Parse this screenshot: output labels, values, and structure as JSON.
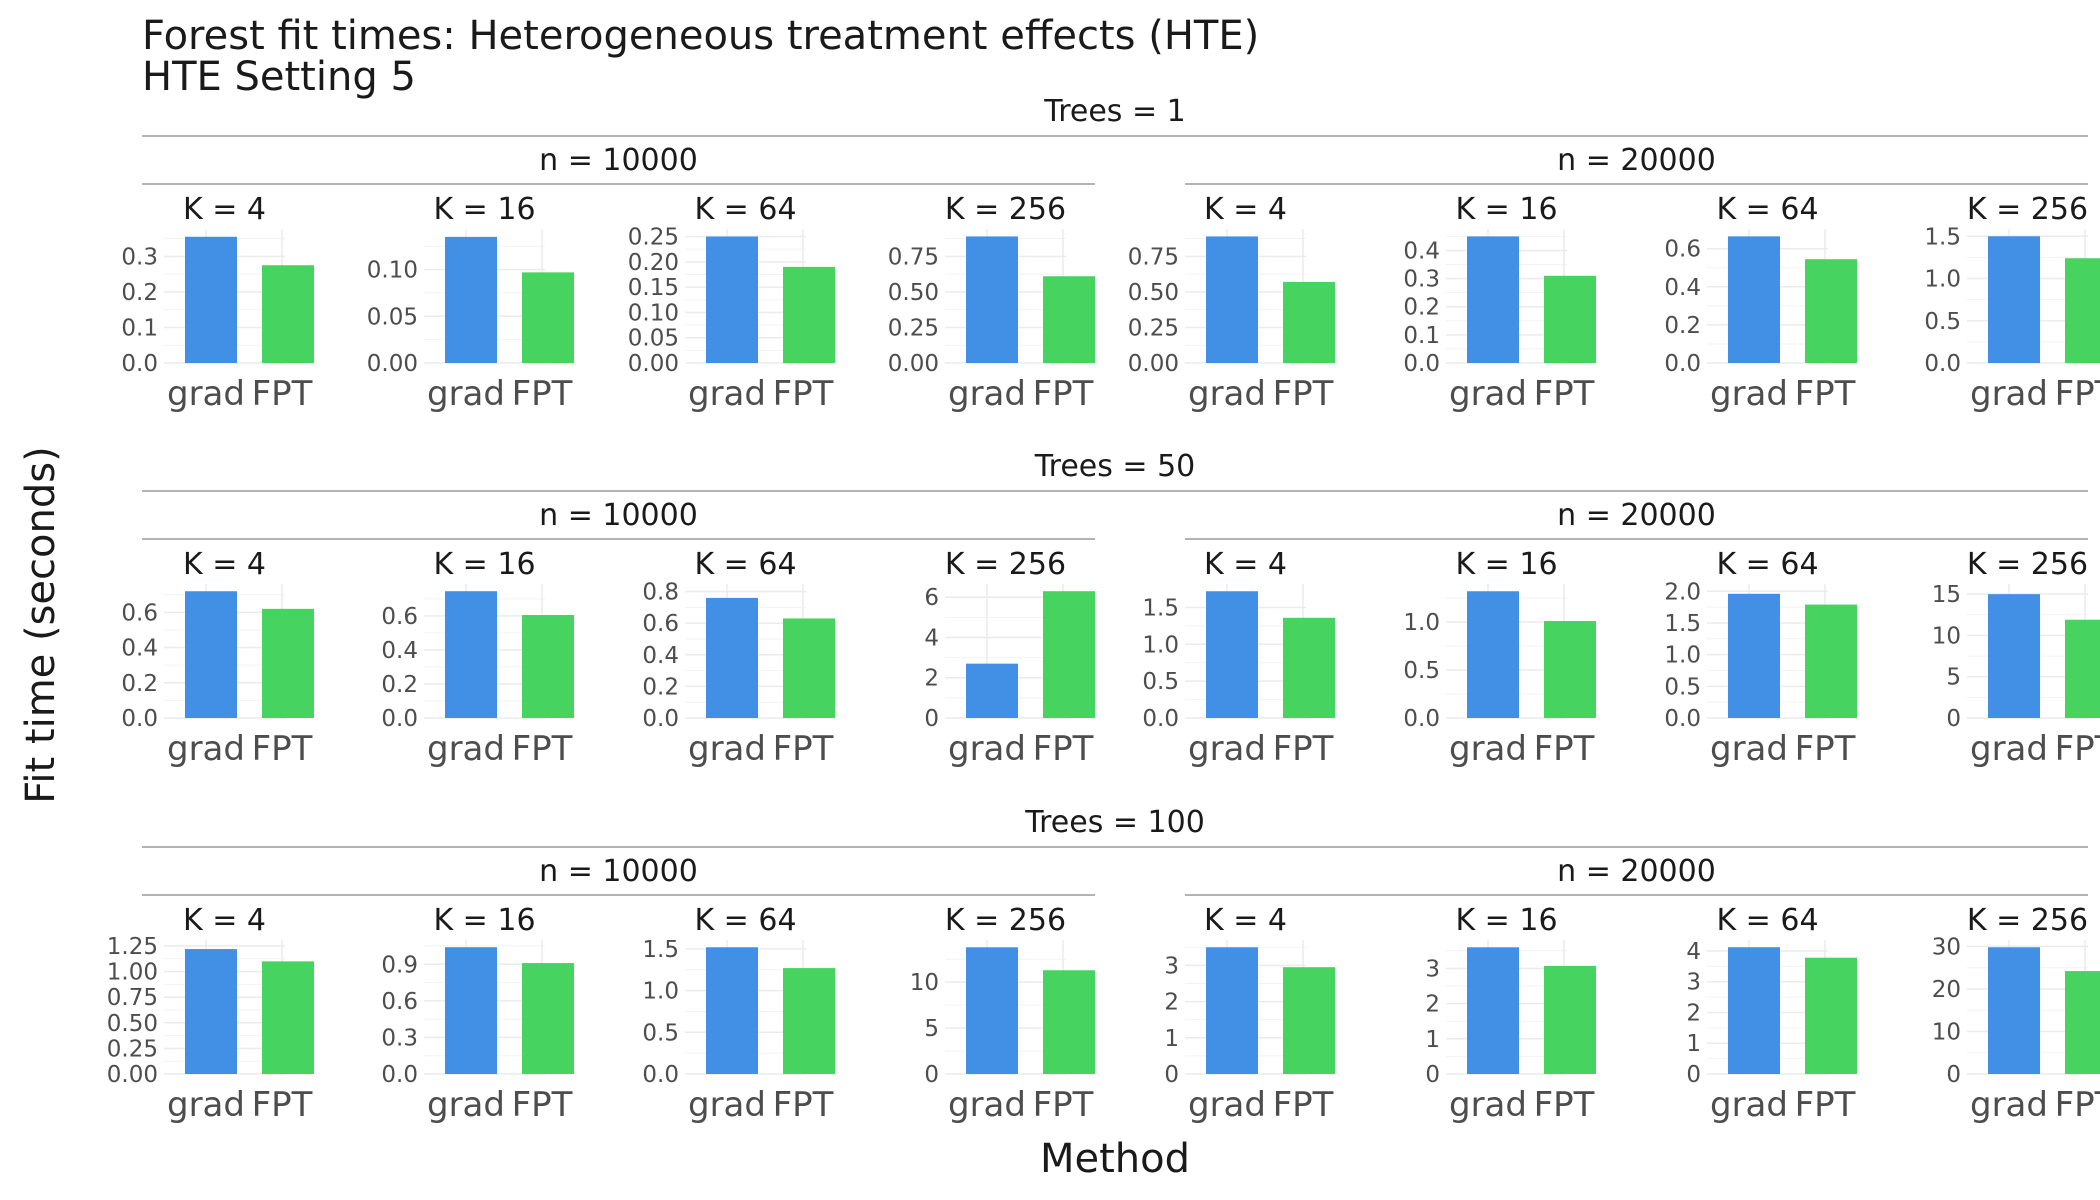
{
  "title": "Forest fit times: Heterogeneous treatment effects (HTE)",
  "subtitle": "HTE Setting 5",
  "chart_data": {
    "type": "bar",
    "xlabel": "Method",
    "ylabel": "Fit time (seconds)",
    "categories": [
      "grad",
      "FPT"
    ],
    "colors": {
      "grad": "#4190e5",
      "FPT": "#47d35f"
    },
    "grid": true,
    "rows": [
      {
        "label": "Trees = 1",
        "groups": [
          {
            "label": "n = 10000",
            "panels": [
              {
                "label": "K = 4",
                "values": [
                  0.355,
                  0.275
                ],
                "ylim": [
                  0,
                  0.36
                ],
                "ticks": [
                  0,
                  0.1,
                  0.2,
                  0.3
                ],
                "tick_labels": [
                  "0.0",
                  "0.1",
                  "0.2",
                  "0.3"
                ]
              },
              {
                "label": "K = 16",
                "values": [
                  0.135,
                  0.097
                ],
                "ylim": [
                  0,
                  0.137
                ],
                "ticks": [
                  0,
                  0.05,
                  0.1
                ],
                "tick_labels": [
                  "0.00",
                  "0.05",
                  "0.10"
                ]
              },
              {
                "label": "K = 64",
                "values": [
                  0.25,
                  0.19
                ],
                "ylim": [
                  0,
                  0.253
                ],
                "ticks": [
                  0,
                  0.05,
                  0.1,
                  0.15,
                  0.2,
                  0.25
                ],
                "tick_labels": [
                  "0.00",
                  "0.05",
                  "0.10",
                  "0.15",
                  "0.20",
                  "0.25"
                ]
              },
              {
                "label": "K = 256",
                "values": [
                  0.89,
                  0.61
                ],
                "ylim": [
                  0,
                  0.9
                ],
                "ticks": [
                  0,
                  0.25,
                  0.5,
                  0.75
                ],
                "tick_labels": [
                  "0.00",
                  "0.25",
                  "0.50",
                  "0.75"
                ]
              }
            ]
          },
          {
            "label": "n = 20000",
            "panels": [
              {
                "label": "K = 4",
                "values": [
                  0.89,
                  0.57
                ],
                "ylim": [
                  0,
                  0.9
                ],
                "ticks": [
                  0,
                  0.25,
                  0.5,
                  0.75
                ],
                "tick_labels": [
                  "0.00",
                  "0.25",
                  "0.50",
                  "0.75"
                ]
              },
              {
                "label": "K = 16",
                "values": [
                  0.45,
                  0.31
                ],
                "ylim": [
                  0,
                  0.455
                ],
                "ticks": [
                  0,
                  0.1,
                  0.2,
                  0.3,
                  0.4
                ],
                "tick_labels": [
                  "0.0",
                  "0.1",
                  "0.2",
                  "0.3",
                  "0.4"
                ]
              },
              {
                "label": "K = 64",
                "values": [
                  0.665,
                  0.545
                ],
                "ylim": [
                  0,
                  0.672
                ],
                "ticks": [
                  0,
                  0.2,
                  0.4,
                  0.6
                ],
                "tick_labels": [
                  "0.0",
                  "0.2",
                  "0.4",
                  "0.6"
                ]
              },
              {
                "label": "K = 256",
                "values": [
                  1.5,
                  1.24
                ],
                "ylim": [
                  0,
                  1.515
                ],
                "ticks": [
                  0,
                  0.5,
                  1.0,
                  1.5
                ],
                "tick_labels": [
                  "0.0",
                  "0.5",
                  "1.0",
                  "1.5"
                ]
              }
            ]
          }
        ]
      },
      {
        "label": "Trees = 50",
        "groups": [
          {
            "label": "n = 10000",
            "panels": [
              {
                "label": "K = 4",
                "values": [
                  0.72,
                  0.62
                ],
                "ylim": [
                  0,
                  0.727
                ],
                "ticks": [
                  0,
                  0.2,
                  0.4,
                  0.6
                ],
                "tick_labels": [
                  "0.0",
                  "0.2",
                  "0.4",
                  "0.6"
                ]
              },
              {
                "label": "K = 16",
                "values": [
                  0.745,
                  0.605
                ],
                "ylim": [
                  0,
                  0.752
                ],
                "ticks": [
                  0,
                  0.2,
                  0.4,
                  0.6
                ],
                "tick_labels": [
                  "0.0",
                  "0.2",
                  "0.4",
                  "0.6"
                ]
              },
              {
                "label": "K = 64",
                "values": [
                  0.76,
                  0.63
                ],
                "ylim": [
                  0,
                  0.81
                ],
                "ticks": [
                  0,
                  0.2,
                  0.4,
                  0.6,
                  0.8
                ],
                "tick_labels": [
                  "0.0",
                  "0.2",
                  "0.4",
                  "0.6",
                  "0.8"
                ]
              },
              {
                "label": "K = 256",
                "values": [
                  2.7,
                  6.3
                ],
                "ylim": [
                  0,
                  6.36
                ],
                "ticks": [
                  0,
                  2,
                  4,
                  6
                ],
                "tick_labels": [
                  "0",
                  "2",
                  "4",
                  "6"
                ]
              }
            ]
          },
          {
            "label": "n = 20000",
            "panels": [
              {
                "label": "K = 4",
                "values": [
                  1.72,
                  1.36
                ],
                "ylim": [
                  0,
                  1.737
                ],
                "ticks": [
                  0,
                  0.5,
                  1.0,
                  1.5
                ],
                "tick_labels": [
                  "0.0",
                  "0.5",
                  "1.0",
                  "1.5"
                ]
              },
              {
                "label": "K = 16",
                "values": [
                  1.32,
                  1.01
                ],
                "ylim": [
                  0,
                  1.333
                ],
                "ticks": [
                  0,
                  0.5,
                  1.0
                ],
                "tick_labels": [
                  "0.0",
                  "0.5",
                  "1.0"
                ]
              },
              {
                "label": "K = 64",
                "values": [
                  1.96,
                  1.79
                ],
                "ylim": [
                  0,
                  2.02
                ],
                "ticks": [
                  0,
                  0.5,
                  1.0,
                  1.5,
                  2.0
                ],
                "tick_labels": [
                  "0.0",
                  "0.5",
                  "1.0",
                  "1.5",
                  "2.0"
                ]
              },
              {
                "label": "K = 256",
                "values": [
                  15.0,
                  11.9
                ],
                "ylim": [
                  0,
                  15.5
                ],
                "ticks": [
                  0,
                  5,
                  10,
                  15
                ],
                "tick_labels": [
                  "0",
                  "5",
                  "10",
                  "15"
                ]
              }
            ]
          }
        ]
      },
      {
        "label": "Trees = 100",
        "groups": [
          {
            "label": "n = 10000",
            "panels": [
              {
                "label": "K = 4",
                "values": [
                  1.22,
                  1.1
                ],
                "ylim": [
                  0,
                  1.25
                ],
                "ticks": [
                  0,
                  0.25,
                  0.5,
                  0.75,
                  1.0,
                  1.25
                ],
                "tick_labels": [
                  "0.00",
                  "0.25",
                  "0.50",
                  "0.75",
                  "1.00",
                  "1.25"
                ]
              },
              {
                "label": "K = 16",
                "values": [
                  1.04,
                  0.91
                ],
                "ylim": [
                  0,
                  1.05
                ],
                "ticks": [
                  0,
                  0.3,
                  0.6,
                  0.9
                ],
                "tick_labels": [
                  "0.0",
                  "0.3",
                  "0.6",
                  "0.9"
                ]
              },
              {
                "label": "K = 64",
                "values": [
                  1.52,
                  1.27
                ],
                "ylim": [
                  0,
                  1.535
                ],
                "ticks": [
                  0,
                  0.5,
                  1.0,
                  1.5
                ],
                "tick_labels": [
                  "0.0",
                  "0.5",
                  "1.0",
                  "1.5"
                ]
              },
              {
                "label": "K = 256",
                "values": [
                  13.8,
                  11.3
                ],
                "ylim": [
                  0,
                  13.94
                ],
                "ticks": [
                  0,
                  5,
                  10
                ],
                "tick_labels": [
                  "0",
                  "5",
                  "10"
                ]
              }
            ]
          },
          {
            "label": "n = 20000",
            "panels": [
              {
                "label": "K = 4",
                "values": [
                  3.5,
                  2.95
                ],
                "ylim": [
                  0,
                  3.535
                ],
                "ticks": [
                  0,
                  1,
                  2,
                  3
                ],
                "tick_labels": [
                  "0",
                  "1",
                  "2",
                  "3"
                ]
              },
              {
                "label": "K = 16",
                "values": [
                  3.6,
                  3.07
                ],
                "ylim": [
                  0,
                  3.636
                ],
                "ticks": [
                  0,
                  1,
                  2,
                  3
                ],
                "tick_labels": [
                  "0",
                  "1",
                  "2",
                  "3"
                ]
              },
              {
                "label": "K = 64",
                "values": [
                  4.12,
                  3.78
                ],
                "ylim": [
                  0,
                  4.16
                ],
                "ticks": [
                  0,
                  1,
                  2,
                  3,
                  4
                ],
                "tick_labels": [
                  "0",
                  "1",
                  "2",
                  "3",
                  "4"
                ]
              },
              {
                "label": "K = 256",
                "values": [
                  29.8,
                  24.2
                ],
                "ylim": [
                  0,
                  30.1
                ],
                "ticks": [
                  0,
                  10,
                  20,
                  30
                ],
                "tick_labels": [
                  "0",
                  "10",
                  "20",
                  "30"
                ]
              }
            ]
          }
        ]
      }
    ]
  }
}
